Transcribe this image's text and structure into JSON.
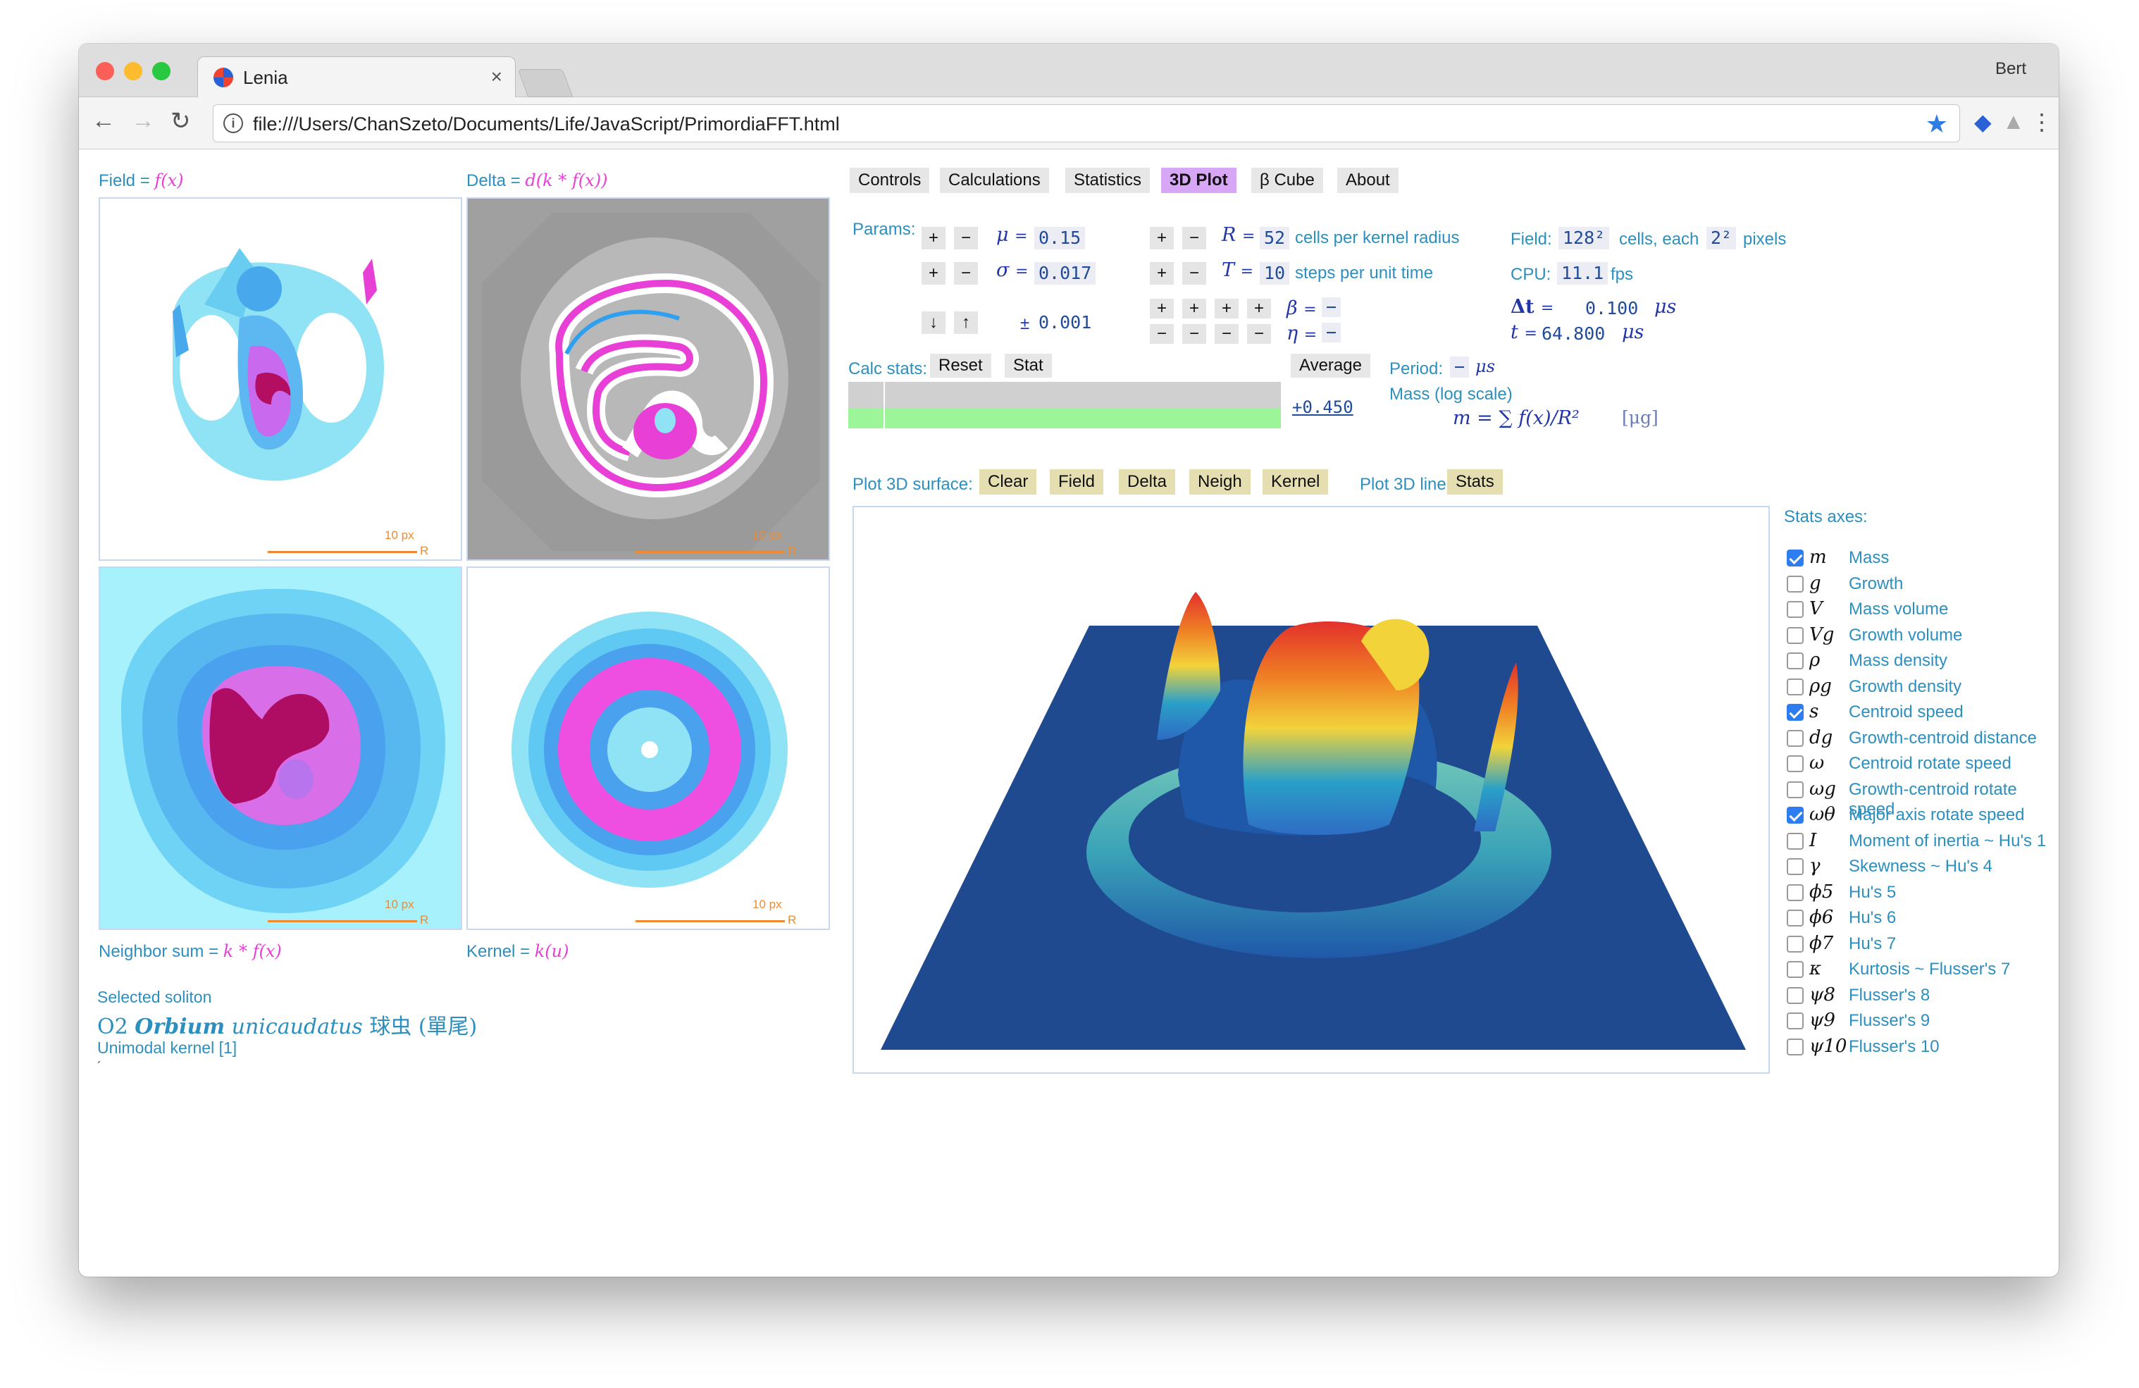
{
  "browser": {
    "tab_title": "Lenia",
    "user": "Bert",
    "url": "file:///Users/ChanSzeto/Documents/Life/JavaScript/PrimordiaFFT.html"
  },
  "panels": {
    "field": {
      "caption": "Field = ",
      "math": "f(x)"
    },
    "delta": {
      "caption": "Delta = ",
      "math": "d(k * f(x))"
    },
    "neighbor": {
      "caption": "Neighbor sum = ",
      "math": "k * f(x)"
    },
    "kernel": {
      "caption": "Kernel = ",
      "math": "k(u)"
    },
    "scale_px": "10 px",
    "scale_r": "R"
  },
  "soliton": {
    "selected_label": "Selected soliton",
    "code": "O2",
    "genus": "Orbium",
    "species": "unicaudatus",
    "chinese": "球虫 (單尾)",
    "kernel": "Unimodal kernel [1]",
    "mark": "´"
  },
  "tabs": [
    {
      "label": "Controls"
    },
    {
      "label": "Calculations"
    },
    {
      "label": "Statistics"
    },
    {
      "label": "3D Plot"
    },
    {
      "label": "β Cube"
    },
    {
      "label": "About"
    }
  ],
  "params": {
    "label": "Params:",
    "plus": "+",
    "minus": "−",
    "down": "↓",
    "up": "↑",
    "mu_sym": "μ",
    "mu": "0.15",
    "sigma_sym": "σ",
    "sigma": "0.017",
    "step_prefix": "±",
    "step": "0.001",
    "R_sym": "R",
    "R": "52",
    "R_desc": "cells per kernel radius",
    "T_sym": "T",
    "T": "10",
    "T_desc": "steps per unit time",
    "beta_sym": "β",
    "beta": "−",
    "eta_sym": "η",
    "eta": "−",
    "eq": "="
  },
  "field_info": {
    "field_label": "Field:",
    "field_size": "128²",
    "field_mid": "cells, each",
    "cell_px": "2²",
    "field_suffix": "pixels",
    "cpu_label": "CPU:",
    "cpu": "11.1",
    "cpu_unit": "fps",
    "dt_sym": "Δt",
    "dt": "0.100",
    "dt_unit": "μs",
    "t_sym": "t",
    "t": "64.800",
    "t_unit": "μs"
  },
  "calc": {
    "label": "Calc stats:",
    "reset": "Reset",
    "stat": "Stat",
    "average": "Average",
    "period_label": "Period:",
    "period_value": "−",
    "period_unit": "μs",
    "value": "+0.450",
    "mass_label": "Mass (log scale)",
    "mass_formula": "m = ∑ f(x)/R²",
    "mass_unit": "[μg]"
  },
  "plot3d": {
    "surface_label": "Plot 3D surface:",
    "surface_buttons": [
      "Clear",
      "Field",
      "Delta",
      "Neigh",
      "Kernel"
    ],
    "line_label": "Plot 3D line:",
    "line_button": "Stats"
  },
  "stats": {
    "title": "Stats axes:",
    "items": [
      {
        "sym": "m",
        "label": "Mass",
        "checked": true
      },
      {
        "sym": "g",
        "label": "Growth",
        "checked": false
      },
      {
        "sym": "V",
        "label": "Mass volume",
        "checked": false
      },
      {
        "sym": "Vg",
        "label": "Growth volume",
        "checked": false
      },
      {
        "sym": "ρ",
        "label": "Mass density",
        "checked": false
      },
      {
        "sym": "ρg",
        "label": "Growth density",
        "checked": false
      },
      {
        "sym": "s",
        "label": "Centroid speed",
        "checked": true
      },
      {
        "sym": "dg",
        "label": "Growth-centroid distance",
        "checked": false
      },
      {
        "sym": "ω",
        "label": "Centroid rotate speed",
        "checked": false
      },
      {
        "sym": "ωg",
        "label": "Growth-centroid rotate speed",
        "checked": false
      },
      {
        "sym": "ωθ",
        "label": "Major axis rotate speed",
        "checked": true
      },
      {
        "sym": "I",
        "label": "Moment of inertia ~ Hu's 1",
        "checked": false
      },
      {
        "sym": "γ",
        "label": "Skewness ~ Hu's 4",
        "checked": false
      },
      {
        "sym": "ϕ5",
        "label": "Hu's 5",
        "checked": false
      },
      {
        "sym": "ϕ6",
        "label": "Hu's 6",
        "checked": false
      },
      {
        "sym": "ϕ7",
        "label": "Hu's 7",
        "checked": false
      },
      {
        "sym": "κ",
        "label": "Kurtosis ~ Flusser's 7",
        "checked": false
      },
      {
        "sym": "ψ8",
        "label": "Flusser's 8",
        "checked": false
      },
      {
        "sym": "ψ9",
        "label": "Flusser's 9",
        "checked": false
      },
      {
        "sym": "ψ10",
        "label": "Flusser's 10",
        "checked": false
      }
    ]
  }
}
